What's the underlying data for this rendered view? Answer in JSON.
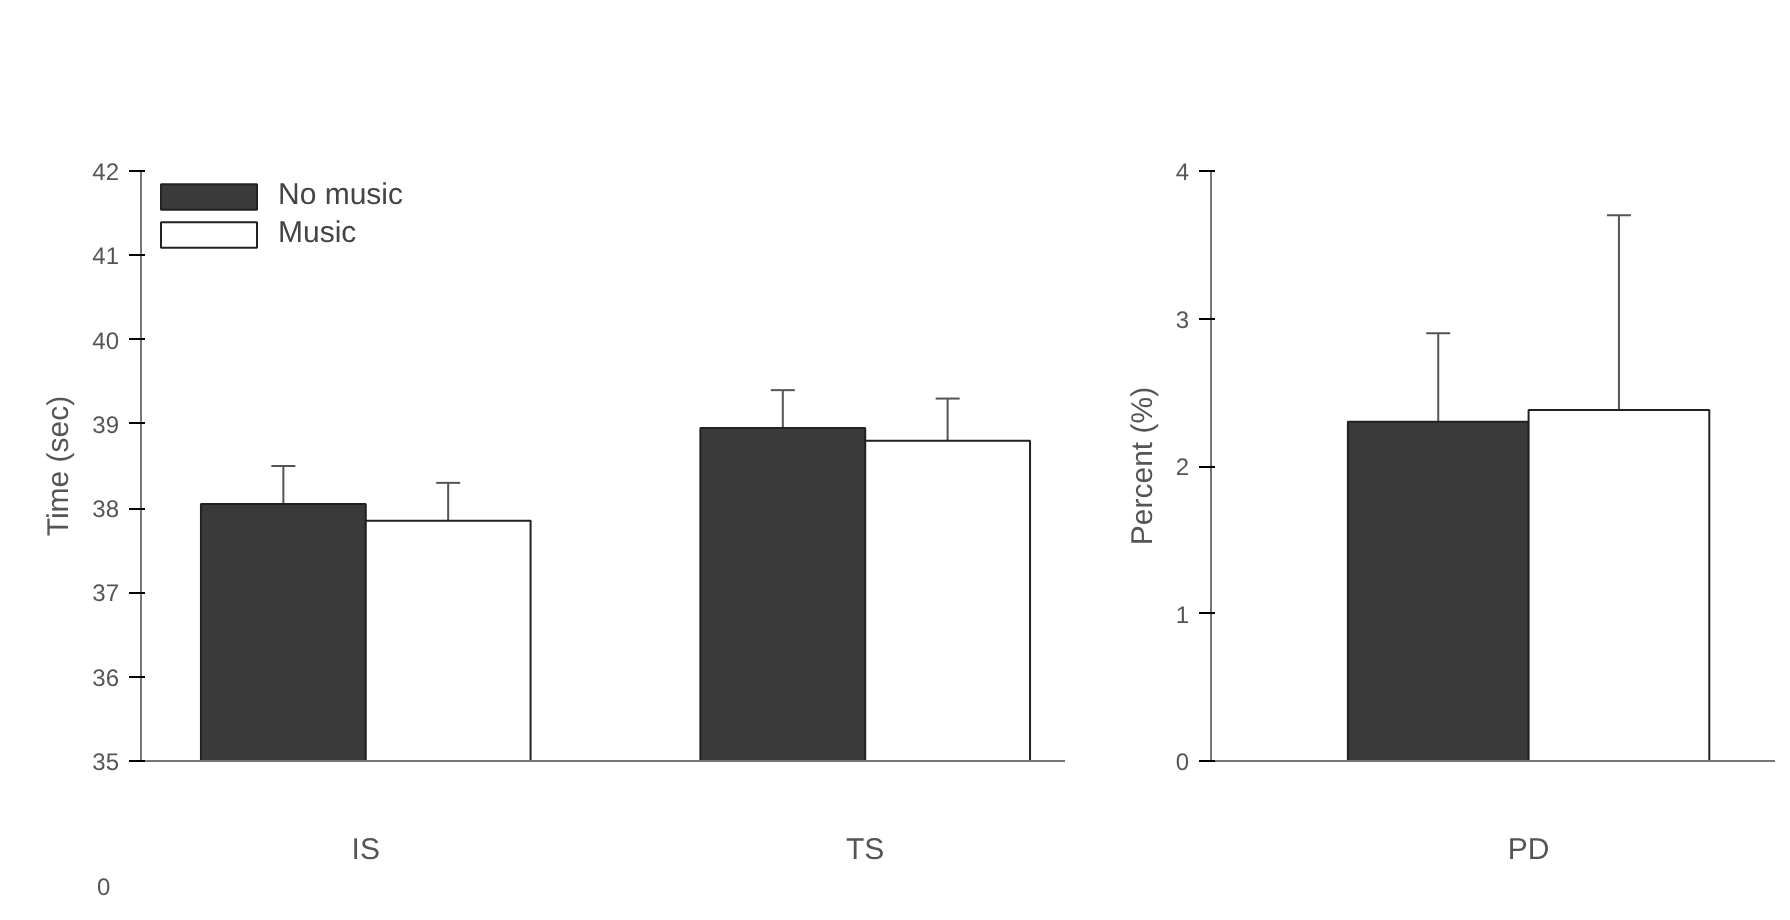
{
  "chart_data": [
    {
      "type": "bar",
      "ylabel": "Time (sec)",
      "categories": [
        "IS",
        "TS"
      ],
      "series": [
        {
          "name": "No music",
          "color": "#3a3a3a",
          "values": [
            38.05,
            38.95
          ],
          "errors": [
            [
              38.05,
              38.5
            ],
            [
              38.95,
              39.4
            ]
          ]
        },
        {
          "name": "Music",
          "color": "#ffffff",
          "values": [
            37.85,
            38.8
          ],
          "errors": [
            [
              37.85,
              38.3
            ],
            [
              38.8,
              39.3
            ]
          ]
        }
      ],
      "ylim": [
        35,
        42
      ],
      "yticks": [
        35,
        36,
        37,
        38,
        39,
        40,
        41,
        42
      ],
      "annotations": [
        "0"
      ],
      "legend": "top left",
      "grid": false
    },
    {
      "type": "bar",
      "ylabel": "Percent (%)",
      "categories": [
        "PD"
      ],
      "series": [
        {
          "color": "#3a3a3a",
          "values": [
            2.3
          ],
          "errors": [
            [
              2.3,
              2.9
            ]
          ]
        },
        {
          "color": "#ffffff",
          "values": [
            2.38
          ],
          "errors": [
            [
              2.38,
              3.7
            ]
          ]
        }
      ],
      "ylim": [
        0,
        4
      ],
      "yticks": [
        0,
        1,
        2,
        3,
        4
      ],
      "grid": false
    }
  ]
}
